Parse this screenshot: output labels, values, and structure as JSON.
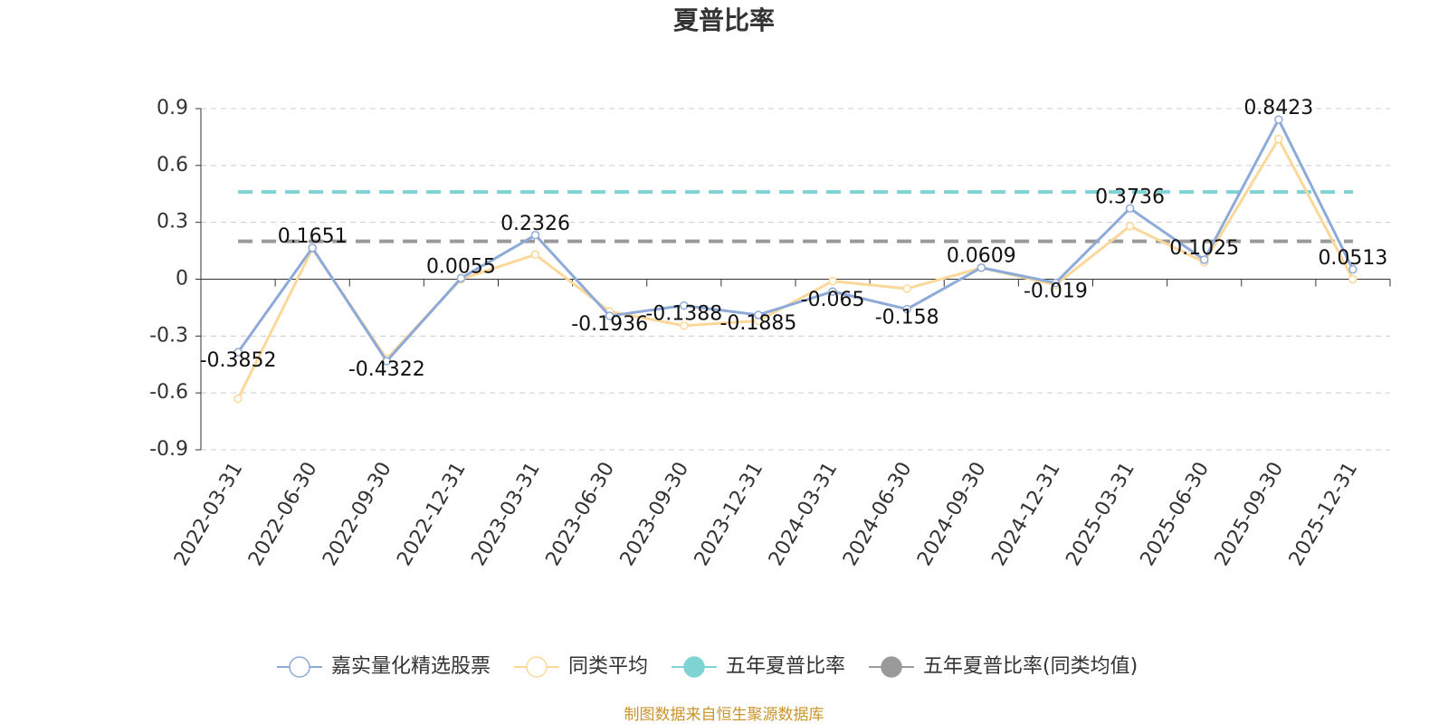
{
  "chart_data": {
    "type": "line",
    "title": "夏普比率",
    "categories": [
      "2022-03-31",
      "2022-06-30",
      "2022-09-30",
      "2022-12-31",
      "2023-03-31",
      "2023-06-30",
      "2023-09-30",
      "2023-12-31",
      "2024-03-31",
      "2024-06-30",
      "2024-09-30",
      "2024-12-31",
      "2025-03-31",
      "2025-06-30",
      "2025-09-30",
      "2025-12-31"
    ],
    "series": [
      {
        "name": "嘉实量化精选股票",
        "color": "#8eaad8",
        "labels": true,
        "values": [
          -0.3852,
          0.1651,
          -0.4322,
          0.0055,
          0.2326,
          -0.1936,
          -0.1388,
          -0.1885,
          -0.065,
          -0.158,
          0.0609,
          -0.019,
          0.3736,
          0.1025,
          0.8423,
          0.0513
        ]
      },
      {
        "name": "同类平均",
        "color": "#fbd89a",
        "labels": false,
        "values": [
          -0.63,
          0.16,
          -0.42,
          0.0,
          0.13,
          -0.17,
          -0.245,
          -0.22,
          -0.01,
          -0.05,
          0.06,
          -0.03,
          0.28,
          0.09,
          0.74,
          0.0
        ]
      }
    ],
    "reference_lines": [
      {
        "name": "五年夏普比率",
        "color": "#7fd3d3",
        "value": 0.46
      },
      {
        "name": "五年夏普比率(同类均值)",
        "color": "#9a9a9a",
        "value": 0.2
      }
    ],
    "ylim": [
      -0.9,
      0.9
    ],
    "yticks": [
      -0.9,
      -0.6,
      -0.3,
      0,
      0.3,
      0.6,
      0.9
    ],
    "grid": true,
    "source": "制图数据来自恒生聚源数据库"
  }
}
